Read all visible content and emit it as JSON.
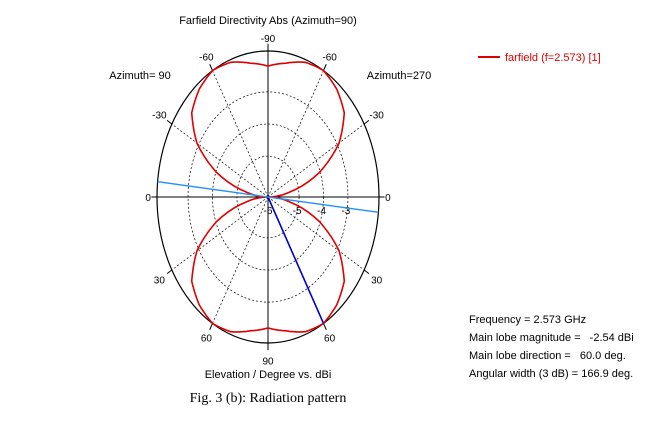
{
  "chart_data": {
    "type": "polar",
    "title": "Farfield Directivity Abs (Azimuth=90)",
    "left_label": "Azimuth= 90",
    "right_label": "Azimuth=270",
    "xlabel": "Elevation / Degree vs. dBi",
    "angle_ticks": [
      "-90",
      "-60",
      "-60",
      "-30",
      "-30",
      "0",
      "0",
      "30",
      "30",
      "60",
      "60",
      "90"
    ],
    "radial_ticks": [
      "-6",
      "-5",
      "-4",
      "-3"
    ],
    "radial_range": [
      -7,
      -2.54
    ],
    "legend": {
      "label": "farfield (f=2.573) [1]",
      "placement": "top-right",
      "color": "#e00000"
    },
    "main_lobe_line": {
      "direction_deg": 60.0,
      "color": "#0000cc"
    },
    "beamwidth_line": {
      "color": "#1e90ff"
    },
    "series": [
      {
        "name": "farfield (f=2.573) [1]",
        "theta_deg": [
          0,
          10,
          20,
          30,
          40,
          50,
          60,
          70,
          80,
          90
        ],
        "directivity_dbi": [
          -7.0,
          -6.1,
          -4.8,
          -3.7,
          -3.0,
          -2.7,
          -2.54,
          -2.62,
          -2.85,
          -3.0
        ]
      }
    ],
    "info": {
      "frequency": {
        "label": "Frequency =",
        "value": "2.573 GHz"
      },
      "main_lobe_magnitude": {
        "label": "Main lobe magnitude =",
        "value": "-2.54 dBi"
      },
      "main_lobe_direction": {
        "label": "Main lobe direction =",
        "value": "60.0 deg."
      },
      "angular_width": {
        "label": "Angular width (3 dB) =",
        "value": "166.9 deg."
      }
    }
  },
  "caption": "Fig. 3 (b): Radiation pattern"
}
